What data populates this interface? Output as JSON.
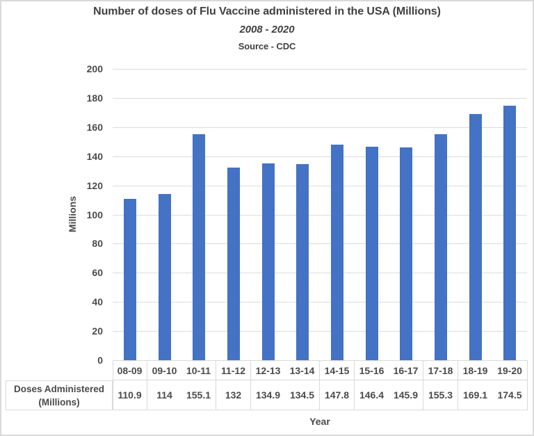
{
  "chart_data": {
    "type": "bar",
    "title": "Number of doses of Flu Vaccine administered in the USA (Millions)",
    "subtitle": "2008 - 2020",
    "source": "Source - CDC",
    "xlabel": "Year",
    "ylabel": "Millions",
    "categories": [
      "08-09",
      "09-10",
      "10-11",
      "11-12",
      "12-13",
      "13-14",
      "14-15",
      "15-16",
      "16-17",
      "17-18",
      "18-19",
      "19-20"
    ],
    "series": [
      {
        "name": "Doses Administered (Millions)",
        "values": [
          110.9,
          114,
          155.1,
          132,
          134.9,
          134.5,
          147.8,
          146.4,
          145.9,
          155.3,
          169.1,
          174.5
        ]
      }
    ],
    "ylim": [
      0,
      200
    ],
    "ytick_step": 20,
    "yticks": [
      0,
      20,
      40,
      60,
      80,
      100,
      120,
      140,
      160,
      180,
      200
    ],
    "grid": "horizontal",
    "legend": "none",
    "data_table_shown": true,
    "colors": {
      "bar": "#4472C4",
      "gridline": "#DCDCDC",
      "table_border": "#D9D9D9",
      "text": "#4A4A4A",
      "title_text": "#404040",
      "frame_border": "#D9D9D9",
      "background": "#FFFFFF"
    }
  }
}
